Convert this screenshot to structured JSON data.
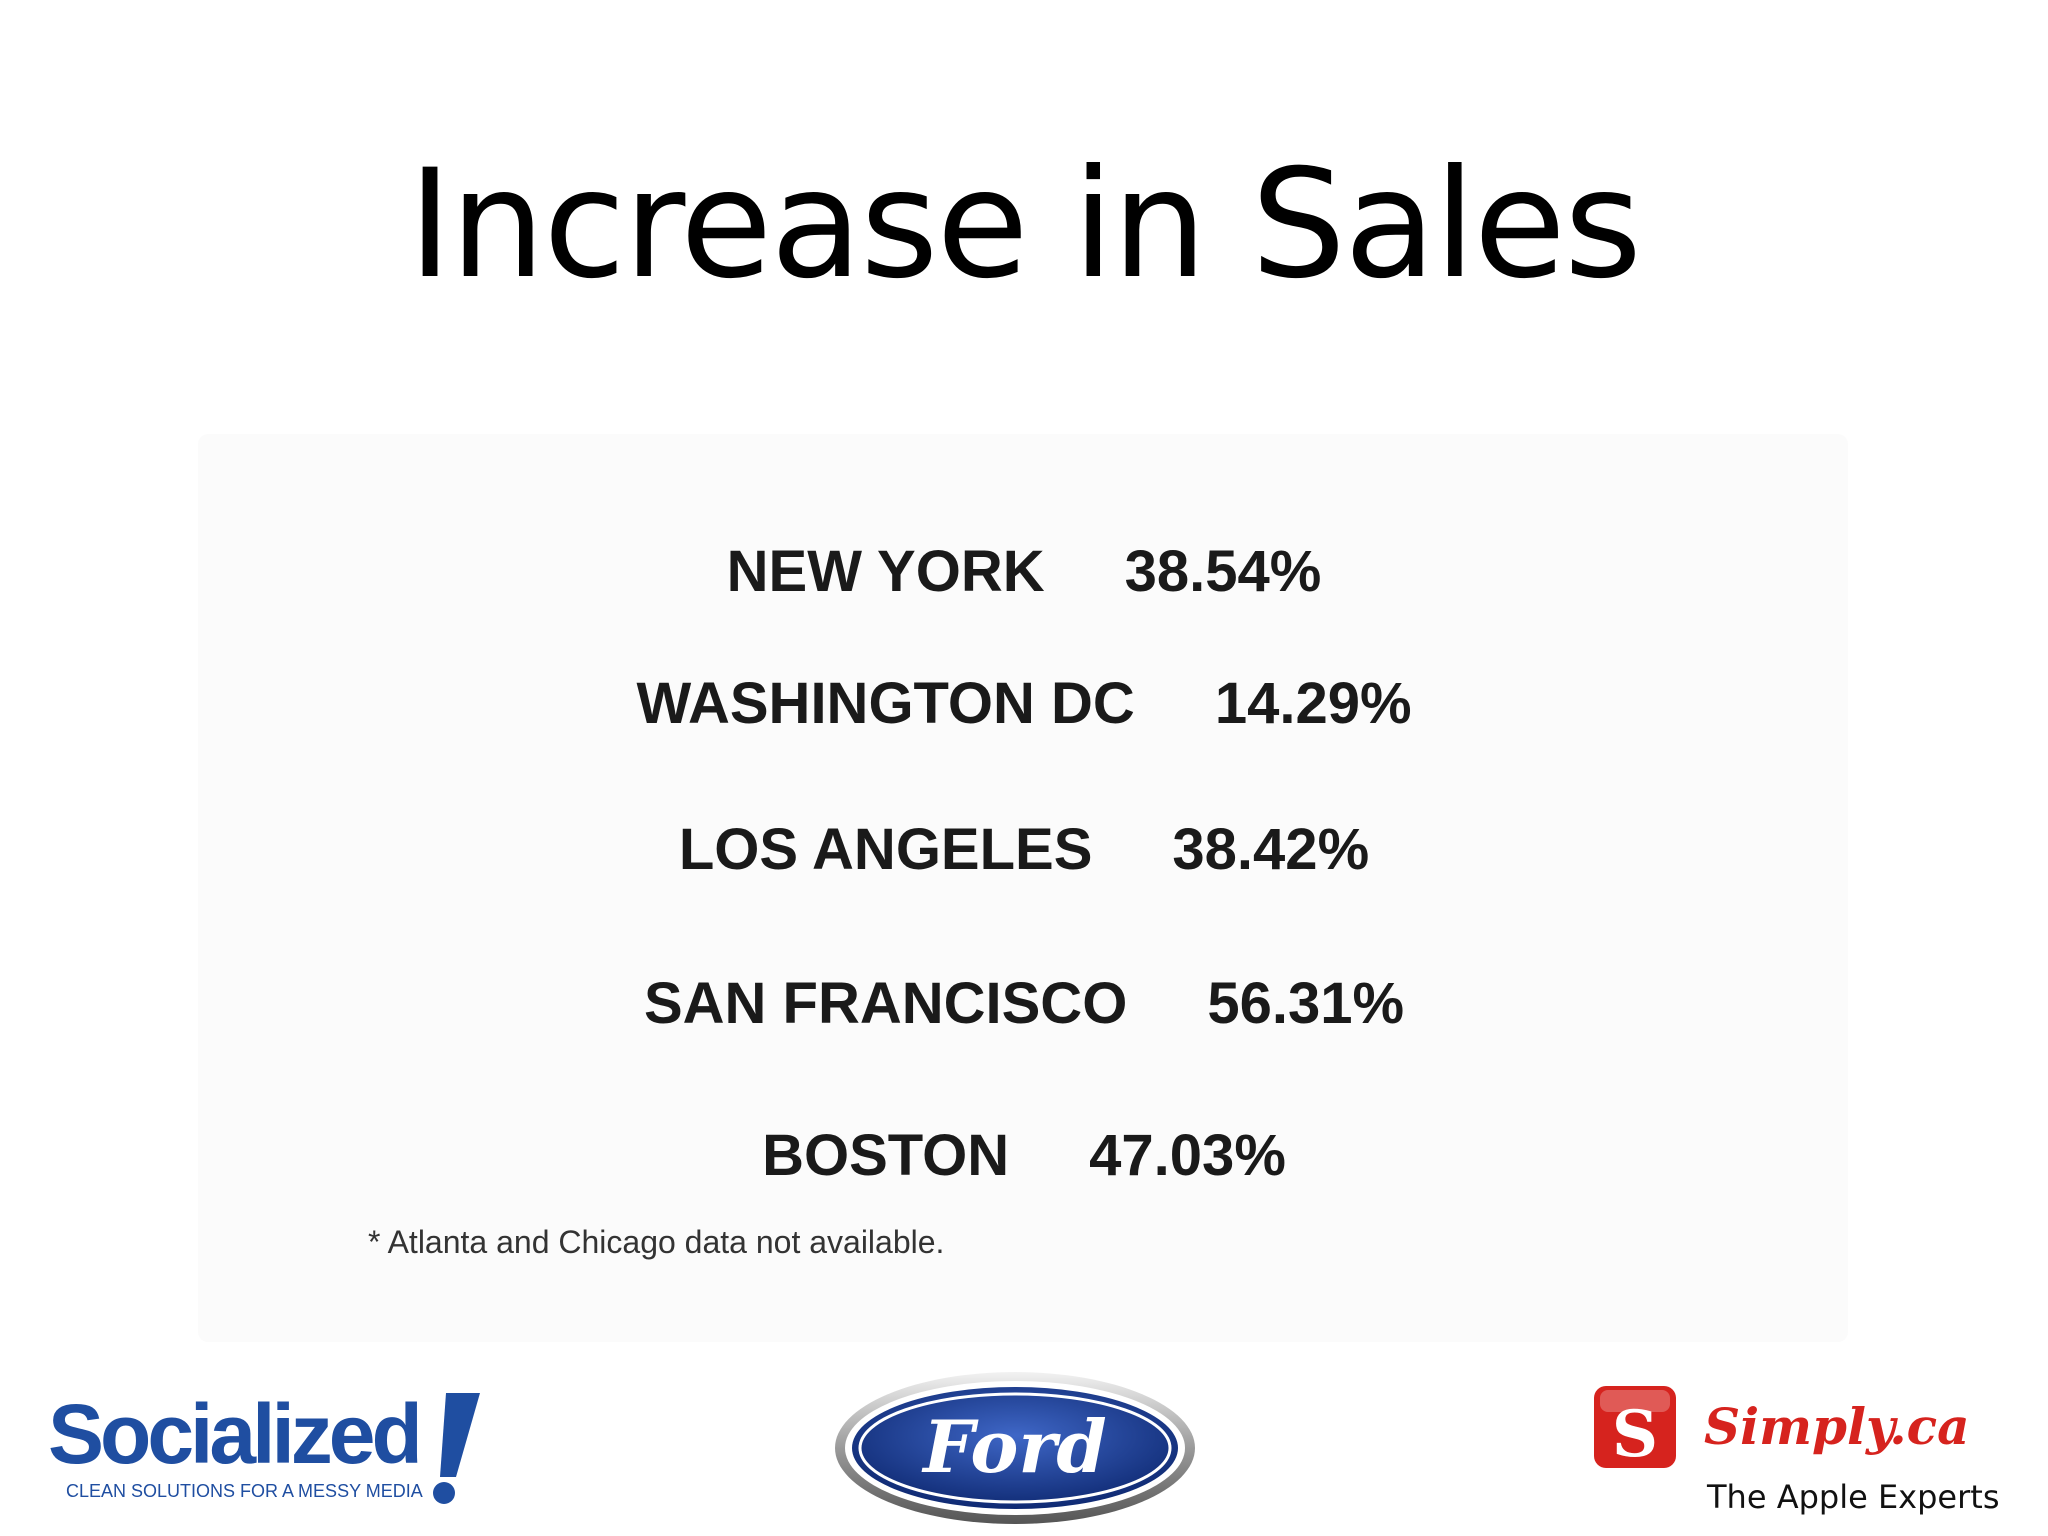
{
  "slide": {
    "title": "Increase in Sales"
  },
  "sales": {
    "rows": [
      {
        "city": "NEW YORK",
        "increase": "38.54%"
      },
      {
        "city": "WASHINGTON DC",
        "increase": "14.29%"
      },
      {
        "city": "LOS ANGELES",
        "increase": "38.42%"
      },
      {
        "city": "SAN FRANCISCO",
        "increase": "56.31%"
      },
      {
        "city": "BOSTON",
        "increase": "47.03%"
      }
    ],
    "footnote": "* Atlanta and Chicago data not available."
  },
  "logos": {
    "socialized": {
      "name": "Socialized",
      "tagline": "CLEAN SOLUTIONS FOR A MESSY MEDIA",
      "color": "#1f4ea1"
    },
    "ford": {
      "name": "Ford",
      "color": "#1a3b8f"
    },
    "simply": {
      "name": "Simply.ca",
      "tagline": "The Apple Experts",
      "color": "#d6231e"
    }
  }
}
